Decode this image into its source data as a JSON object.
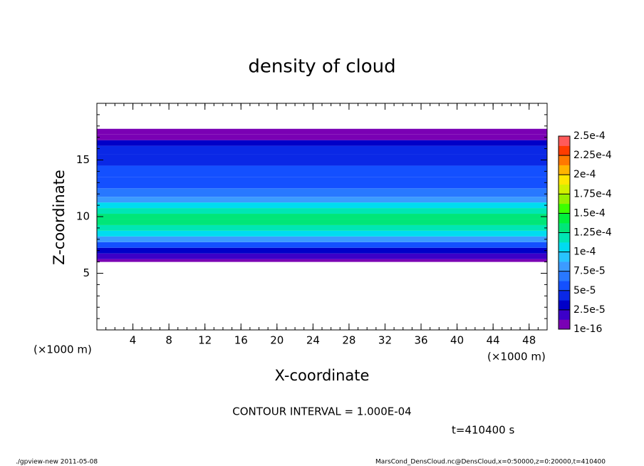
{
  "chart_data": {
    "type": "contour",
    "title": "density of cloud",
    "x_label": "X-coordinate",
    "y_label": "Z-coordinate",
    "x_unit": "(×1000 m)",
    "y_unit": "(×1000 m)",
    "xlim": [
      0,
      50
    ],
    "ylim": [
      0,
      20
    ],
    "xticks": [
      4,
      8,
      12,
      16,
      20,
      24,
      28,
      32,
      36,
      40,
      44,
      48
    ],
    "yticks": [
      5,
      10,
      15
    ],
    "profile": {
      "z": [
        6,
        6.5,
        7,
        7.5,
        8,
        8.5,
        9,
        9.5,
        10,
        10.5,
        11,
        11.5,
        12,
        13,
        14,
        15,
        16,
        16.5,
        17,
        17.5
      ],
      "values": [
        1e-06,
        1.5e-05,
        3e-05,
        6e-05,
        8e-05,
        0.0001,
        0.00012,
        0.00013,
        0.000135,
        0.00012,
        0.0001,
        8.5e-05,
        7e-05,
        6e-05,
        5e-05,
        4.5e-05,
        4e-05,
        2.5e-05,
        1.2e-05,
        1e-06
      ]
    },
    "colorbar": {
      "lim": [
        0,
        0.00025
      ],
      "ticks": [
        {
          "value": 1e-16,
          "label": "1e-16"
        },
        {
          "value": 2.5e-05,
          "label": "2.5e-5"
        },
        {
          "value": 5e-05,
          "label": "5e-5"
        },
        {
          "value": 7.5e-05,
          "label": "7.5e-5"
        },
        {
          "value": 0.0001,
          "label": "1e-4"
        },
        {
          "value": 0.000125,
          "label": "1.25e-4"
        },
        {
          "value": 0.00015,
          "label": "1.5e-4"
        },
        {
          "value": 0.000175,
          "label": "1.75e-4"
        },
        {
          "value": 0.0002,
          "label": "2e-4"
        },
        {
          "value": 0.000225,
          "label": "2.25e-4"
        },
        {
          "value": 0.00025,
          "label": "2.5e-4"
        }
      ],
      "colors": [
        "#7a00b4",
        "#3c00c8",
        "#0000c8",
        "#0a28e6",
        "#1450ff",
        "#2878ff",
        "#3c9bff",
        "#28c3ff",
        "#00dcf0",
        "#00e6b4",
        "#00e678",
        "#00f03c",
        "#3cff00",
        "#96f000",
        "#d2f000",
        "#ffe600",
        "#ffb400",
        "#ff7800",
        "#ff3c00",
        "#ff5a5a"
      ]
    },
    "contour_interval": "CONTOUR INTERVAL = 1.000E-04",
    "time_label": "t=410400 s",
    "footer_left": "./gpview-new  2011-05-08",
    "footer_right": "MarsCond_DensCloud.nc@DensCloud,x=0:50000,z=0:20000,t=410400"
  }
}
